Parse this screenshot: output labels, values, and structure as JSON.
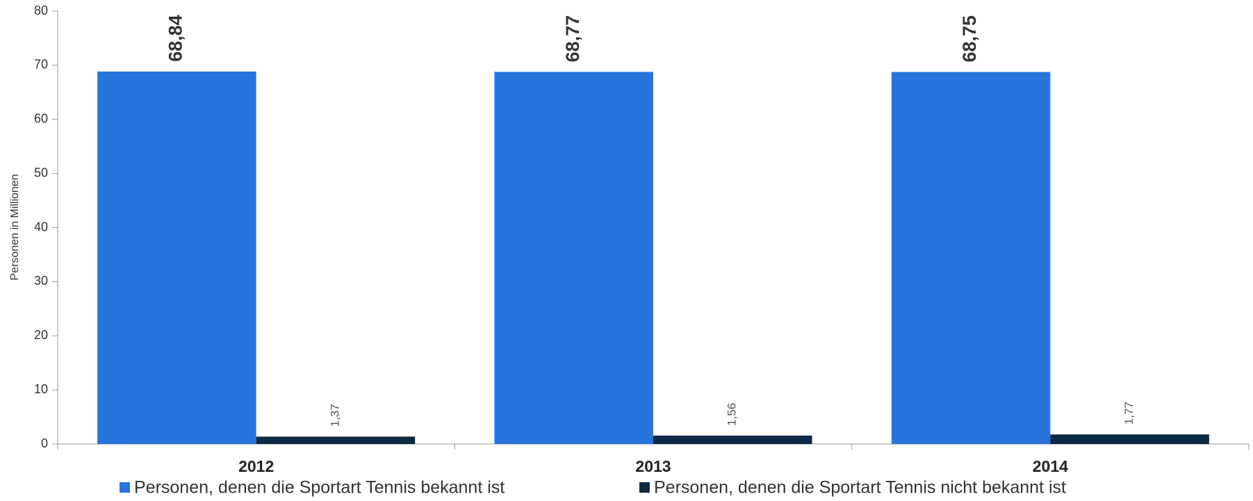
{
  "chart_data": {
    "type": "bar",
    "y_label": "Personen in Millionen",
    "categories": [
      "2012",
      "2013",
      "2014"
    ],
    "series": [
      {
        "name": "Personen, denen die Sportart Tennis bekannt ist",
        "color": "#2874dd",
        "values": [
          68.84,
          68.77,
          68.75
        ],
        "value_labels": [
          "68,84",
          "68,77",
          "68,75"
        ]
      },
      {
        "name": "Personen, denen die Sportart Tennis nicht bekannt ist",
        "color": "#0d2a45",
        "values": [
          1.37,
          1.56,
          1.77
        ],
        "value_labels": [
          "1,37",
          "1,56",
          "1,77"
        ]
      }
    ],
    "ylim": [
      0,
      80
    ],
    "yticks": [
      0,
      10,
      20,
      30,
      40,
      50,
      60,
      70,
      80
    ],
    "grid": false,
    "legend": "bottom"
  }
}
